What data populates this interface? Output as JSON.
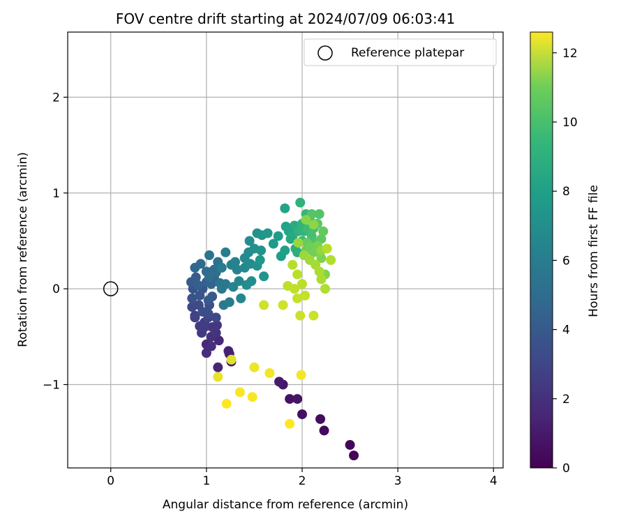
{
  "chart_data": {
    "type": "scatter",
    "title": "FOV centre drift starting at 2024/07/09 06:03:41",
    "xlabel": "Angular distance from reference (arcmin)",
    "ylabel": "Rotation from reference (arcmin)",
    "xlim": [
      -0.45,
      4.1
    ],
    "ylim": [
      -1.87,
      2.68
    ],
    "xticks": [
      0,
      1,
      2,
      3,
      4
    ],
    "yticks": [
      -1,
      0,
      1,
      2
    ],
    "xtick_labels": [
      "0",
      "1",
      "2",
      "3",
      "4"
    ],
    "ytick_labels": [
      "−1",
      "0",
      "1",
      "2"
    ],
    "grid": true,
    "legend": {
      "placement": "top-right",
      "label": "Reference platepar"
    },
    "reference_point": {
      "x": 0,
      "y": 0
    },
    "colorbar": {
      "label": "Hours from first FF file",
      "colormap": "viridis",
      "range": [
        0,
        12.6
      ],
      "ticks": [
        0,
        2,
        4,
        6,
        8,
        10,
        12
      ],
      "tick_labels": [
        "0",
        "2",
        "4",
        "6",
        "8",
        "10",
        "12"
      ]
    },
    "points": [
      [
        2.54,
        -1.74,
        0.1
      ],
      [
        2.5,
        -1.63,
        0.2
      ],
      [
        2.23,
        -1.48,
        0.3
      ],
      [
        2.19,
        -1.36,
        0.4
      ],
      [
        2.0,
        -1.31,
        0.5
      ],
      [
        1.87,
        -1.15,
        0.6
      ],
      [
        1.95,
        -1.15,
        0.7
      ],
      [
        1.8,
        -1.0,
        0.8
      ],
      [
        1.76,
        -0.97,
        0.9
      ],
      [
        1.26,
        -0.76,
        1.0
      ],
      [
        1.24,
        -0.68,
        1.1
      ],
      [
        1.23,
        -0.65,
        1.2
      ],
      [
        1.12,
        -0.82,
        1.3
      ],
      [
        1.13,
        -0.54,
        1.4
      ],
      [
        1.0,
        -0.58,
        1.5
      ],
      [
        1.0,
        -0.67,
        1.6
      ],
      [
        1.05,
        -0.6,
        1.7
      ],
      [
        1.05,
        -0.5,
        1.8
      ],
      [
        1.1,
        -0.46,
        1.9
      ],
      [
        1.11,
        -0.38,
        2.0
      ],
      [
        1.06,
        -0.4,
        2.0
      ],
      [
        0.95,
        -0.46,
        2.1
      ],
      [
        0.93,
        -0.39,
        2.2
      ],
      [
        0.98,
        -0.35,
        2.3
      ],
      [
        0.98,
        -0.4,
        2.3
      ],
      [
        0.88,
        -0.28,
        2.4
      ],
      [
        0.88,
        -0.3,
        2.5
      ],
      [
        1.02,
        -0.3,
        2.6
      ],
      [
        1.1,
        -0.3,
        2.7
      ],
      [
        0.85,
        -0.19,
        2.8
      ],
      [
        0.92,
        -0.17,
        2.9
      ],
      [
        0.96,
        -0.24,
        3.0
      ],
      [
        1.02,
        -0.26,
        3.0
      ],
      [
        1.03,
        -0.17,
        3.1
      ],
      [
        0.85,
        -0.1,
        3.2
      ],
      [
        0.93,
        -0.07,
        3.3
      ],
      [
        0.86,
        0.0,
        3.3
      ],
      [
        0.96,
        0.0,
        3.4
      ],
      [
        1.02,
        -0.12,
        3.5
      ],
      [
        1.06,
        -0.08,
        3.5
      ],
      [
        0.84,
        0.07,
        3.6
      ],
      [
        0.89,
        0.12,
        3.7
      ],
      [
        0.91,
        0.04,
        3.8
      ],
      [
        1.0,
        0.07,
        3.9
      ],
      [
        1.05,
        0.05,
        4.0
      ],
      [
        1.08,
        0.12,
        4.1
      ],
      [
        0.88,
        0.22,
        4.2
      ],
      [
        0.94,
        0.26,
        4.3
      ],
      [
        1.0,
        0.18,
        4.4
      ],
      [
        1.03,
        0.12,
        4.5
      ],
      [
        1.08,
        0.2,
        4.6
      ],
      [
        1.1,
        0.17,
        4.6
      ],
      [
        1.12,
        0.28,
        4.7
      ],
      [
        1.03,
        0.35,
        4.8
      ],
      [
        1.14,
        0.06,
        4.9
      ],
      [
        1.16,
        0.0,
        5.0
      ],
      [
        1.2,
        0.05,
        5.0
      ],
      [
        1.18,
        -0.17,
        5.1
      ],
      [
        1.24,
        -0.14,
        5.2
      ],
      [
        1.16,
        0.22,
        5.3
      ],
      [
        1.2,
        0.38,
        5.4
      ],
      [
        1.26,
        0.25,
        5.5
      ],
      [
        1.3,
        0.28,
        5.6
      ],
      [
        1.32,
        0.2,
        5.6
      ],
      [
        1.28,
        0.02,
        5.7
      ],
      [
        1.34,
        0.08,
        5.8
      ],
      [
        1.36,
        -0.1,
        5.8
      ],
      [
        1.4,
        0.22,
        5.9
      ],
      [
        1.4,
        0.32,
        6.0
      ],
      [
        1.44,
        0.38,
        6.0
      ],
      [
        1.46,
        0.26,
        6.1
      ],
      [
        1.42,
        0.04,
        6.1
      ],
      [
        1.47,
        0.08,
        6.2
      ],
      [
        1.45,
        0.5,
        6.2
      ],
      [
        1.5,
        0.42,
        6.3
      ],
      [
        1.53,
        0.24,
        6.3
      ],
      [
        1.53,
        0.58,
        6.4
      ],
      [
        1.57,
        0.4,
        6.4
      ],
      [
        1.58,
        0.56,
        6.5
      ],
      [
        1.6,
        0.13,
        6.5
      ],
      [
        1.56,
        0.3,
        6.6
      ],
      [
        1.64,
        0.58,
        6.7
      ],
      [
        1.7,
        0.47,
        6.8
      ],
      [
        1.75,
        0.55,
        6.9
      ],
      [
        1.78,
        0.34,
        7.0
      ],
      [
        1.82,
        0.4,
        7.1
      ],
      [
        1.83,
        0.65,
        7.2
      ],
      [
        1.82,
        0.84,
        7.3
      ],
      [
        1.86,
        0.6,
        7.4
      ],
      [
        1.88,
        0.52,
        7.5
      ],
      [
        1.9,
        0.55,
        7.6
      ],
      [
        1.92,
        0.66,
        7.7
      ],
      [
        1.93,
        0.42,
        7.8
      ],
      [
        1.95,
        0.38,
        7.9
      ],
      [
        1.96,
        0.6,
        8.0
      ],
      [
        1.98,
        0.9,
        8.1
      ],
      [
        2.0,
        0.68,
        8.2
      ],
      [
        2.02,
        0.6,
        8.3
      ],
      [
        2.04,
        0.78,
        8.4
      ],
      [
        2.0,
        0.5,
        8.5
      ],
      [
        2.06,
        0.62,
        8.6
      ],
      [
        2.08,
        0.72,
        8.7
      ],
      [
        2.1,
        0.55,
        8.8
      ],
      [
        2.12,
        0.63,
        8.9
      ],
      [
        2.14,
        0.48,
        9.0
      ],
      [
        2.18,
        0.78,
        9.1
      ],
      [
        2.1,
        0.78,
        9.2
      ],
      [
        2.16,
        0.68,
        9.3
      ],
      [
        2.2,
        0.52,
        9.4
      ],
      [
        2.22,
        0.6,
        9.5
      ],
      [
        2.05,
        0.48,
        9.6
      ],
      [
        2.04,
        0.4,
        9.7
      ],
      [
        2.08,
        0.44,
        9.8
      ],
      [
        2.12,
        0.38,
        9.9
      ],
      [
        2.16,
        0.45,
        10.0
      ],
      [
        2.2,
        0.32,
        10.1
      ],
      [
        2.24,
        0.15,
        10.2
      ],
      [
        2.04,
        0.72,
        10.3
      ],
      [
        2.12,
        0.67,
        10.4
      ],
      [
        2.2,
        0.4,
        10.5
      ],
      [
        1.96,
        0.48,
        10.6
      ],
      [
        2.02,
        0.35,
        10.7
      ],
      [
        2.08,
        0.3,
        10.8
      ],
      [
        2.14,
        0.25,
        10.9
      ],
      [
        2.18,
        0.18,
        11.0
      ],
      [
        2.2,
        0.1,
        11.0
      ],
      [
        2.24,
        0.0,
        11.1
      ],
      [
        2.3,
        0.3,
        11.1
      ],
      [
        2.26,
        0.42,
        11.2
      ],
      [
        1.9,
        0.25,
        11.2
      ],
      [
        1.95,
        0.15,
        11.3
      ],
      [
        2.0,
        0.05,
        11.3
      ],
      [
        1.85,
        0.03,
        11.4
      ],
      [
        1.92,
        0.0,
        11.4
      ],
      [
        2.03,
        -0.07,
        11.5
      ],
      [
        1.95,
        -0.1,
        11.5
      ],
      [
        1.98,
        -0.28,
        11.6
      ],
      [
        2.12,
        -0.28,
        11.6
      ],
      [
        1.6,
        -0.17,
        11.7
      ],
      [
        1.8,
        -0.17,
        11.7
      ],
      [
        1.26,
        -0.74,
        12.0
      ],
      [
        1.12,
        -0.92,
        12.2
      ],
      [
        1.5,
        -0.82,
        12.3
      ],
      [
        1.66,
        -0.88,
        12.4
      ],
      [
        1.99,
        -0.9,
        12.4
      ],
      [
        1.35,
        -1.08,
        12.5
      ],
      [
        1.48,
        -1.13,
        12.5
      ],
      [
        1.21,
        -1.2,
        12.6
      ],
      [
        1.87,
        -1.41,
        12.6
      ]
    ]
  }
}
